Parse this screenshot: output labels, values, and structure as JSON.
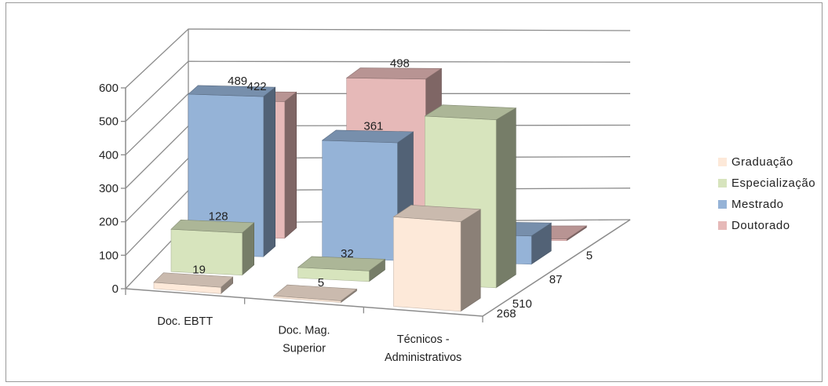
{
  "chart_data": {
    "type": "bar",
    "title": "",
    "categories": [
      "Doc. EBTT",
      "Doc. Mag. Superior",
      "Técnicos - Administrativos"
    ],
    "category_lines": [
      [
        "Doc. EBTT"
      ],
      [
        "Doc. Mag.",
        "Superior"
      ],
      [
        "Técnicos -",
        "Administrativos"
      ]
    ],
    "series": [
      {
        "name": "Graduação",
        "values": [
          19,
          5,
          268
        ],
        "color": "#fde9d9"
      },
      {
        "name": "Especialização",
        "values": [
          128,
          32,
          510
        ],
        "color": "#d7e4bd"
      },
      {
        "name": "Mestrado",
        "values": [
          489,
          361,
          87
        ],
        "color": "#95b3d7"
      },
      {
        "name": "Doutorado",
        "values": [
          422,
          498,
          5
        ],
        "color": "#e6b9b8"
      }
    ],
    "y_ticks": [
      0,
      100,
      200,
      300,
      400,
      500,
      600
    ],
    "ylim": [
      0,
      600
    ],
    "grid": true,
    "legend_position": "right",
    "three_d": true
  },
  "legend": {
    "items": [
      "Graduação",
      "Especialização",
      "Mestrado",
      "Doutorado"
    ]
  }
}
